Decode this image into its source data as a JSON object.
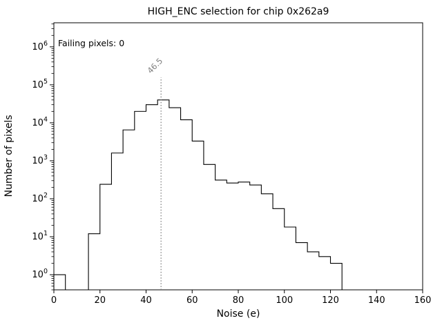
{
  "chart_data": {
    "type": "bar",
    "style": "step-histogram",
    "title": "HIGH_ENC selection for chip 0x262a9",
    "xlabel": "Noise (e)",
    "ylabel": "Number of pixels",
    "yscale": "log",
    "grid": false,
    "legend": "none",
    "xlim": [
      0,
      160
    ],
    "ylim": [
      0.4,
      4300000
    ],
    "x_ticks": [
      0,
      20,
      40,
      60,
      80,
      100,
      120,
      140,
      160
    ],
    "y_tick_exponents": [
      0,
      1,
      2,
      3,
      4,
      5,
      6
    ],
    "bin_width": 5,
    "bin_edges": [
      0,
      5,
      10,
      15,
      20,
      25,
      30,
      35,
      40,
      45,
      50,
      55,
      60,
      65,
      70,
      75,
      80,
      85,
      90,
      95,
      100,
      105,
      110,
      115,
      120,
      125
    ],
    "counts": [
      1,
      0,
      0,
      12,
      240,
      1600,
      6500,
      20000,
      30000,
      40000,
      25000,
      12000,
      3300,
      800,
      310,
      260,
      275,
      230,
      135,
      55,
      18,
      7,
      4,
      3,
      2
    ],
    "line_color": "#000000",
    "vline": {
      "x": 46.5,
      "label": "46.5",
      "color": "#7f7f7f",
      "style": "dotted"
    },
    "annotation": {
      "text": "Failing pixels: 0",
      "color": "#ff0000"
    }
  }
}
